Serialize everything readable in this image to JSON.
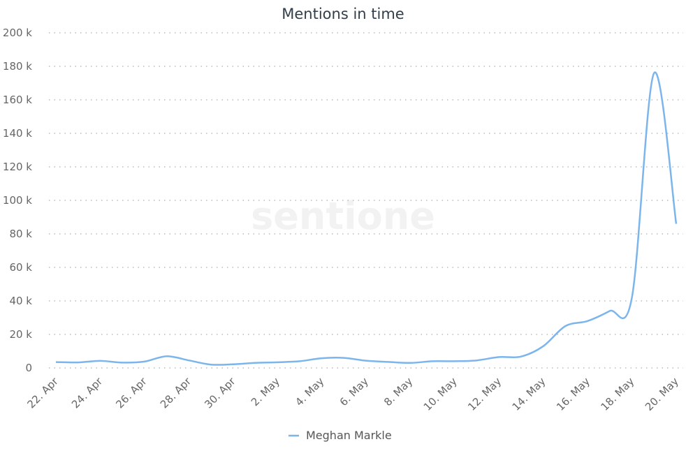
{
  "chart_data": {
    "type": "line",
    "title": "Mentions in time",
    "watermark": "sentione",
    "categories": [
      "22. Apr",
      null,
      "24. Apr",
      null,
      "26. Apr",
      null,
      "28. Apr",
      null,
      "30. Apr",
      null,
      "2. May",
      null,
      "4. May",
      null,
      "6. May",
      null,
      "8. May",
      null,
      "10. May",
      null,
      "12. May",
      null,
      "14. May",
      null,
      "16. May",
      null,
      "18. May",
      null,
      "20. May"
    ],
    "series": [
      {
        "name": "Meghan Markle",
        "color": "#7cb5ec",
        "values": [
          3500,
          3300,
          4200,
          3200,
          3800,
          7000,
          4500,
          2000,
          2200,
          3000,
          3400,
          4000,
          5800,
          6000,
          4300,
          3600,
          3000,
          4000,
          4000,
          4500,
          6500,
          6800,
          13000,
          25000,
          28000,
          34000,
          42000,
          176000,
          86000
        ]
      }
    ],
    "ylim": [
      0,
      200000
    ],
    "yticks": [
      {
        "value": 0,
        "label": "0"
      },
      {
        "value": 20000,
        "label": "20 k"
      },
      {
        "value": 40000,
        "label": "40 k"
      },
      {
        "value": 60000,
        "label": "60 k"
      },
      {
        "value": 80000,
        "label": "80 k"
      },
      {
        "value": 100000,
        "label": "100 k"
      },
      {
        "value": 120000,
        "label": "120 k"
      },
      {
        "value": 140000,
        "label": "140 k"
      },
      {
        "value": 160000,
        "label": "160 k"
      },
      {
        "value": 180000,
        "label": "180 k"
      },
      {
        "value": 200000,
        "label": "200 k"
      }
    ],
    "grid": true,
    "legend": "bottom"
  }
}
